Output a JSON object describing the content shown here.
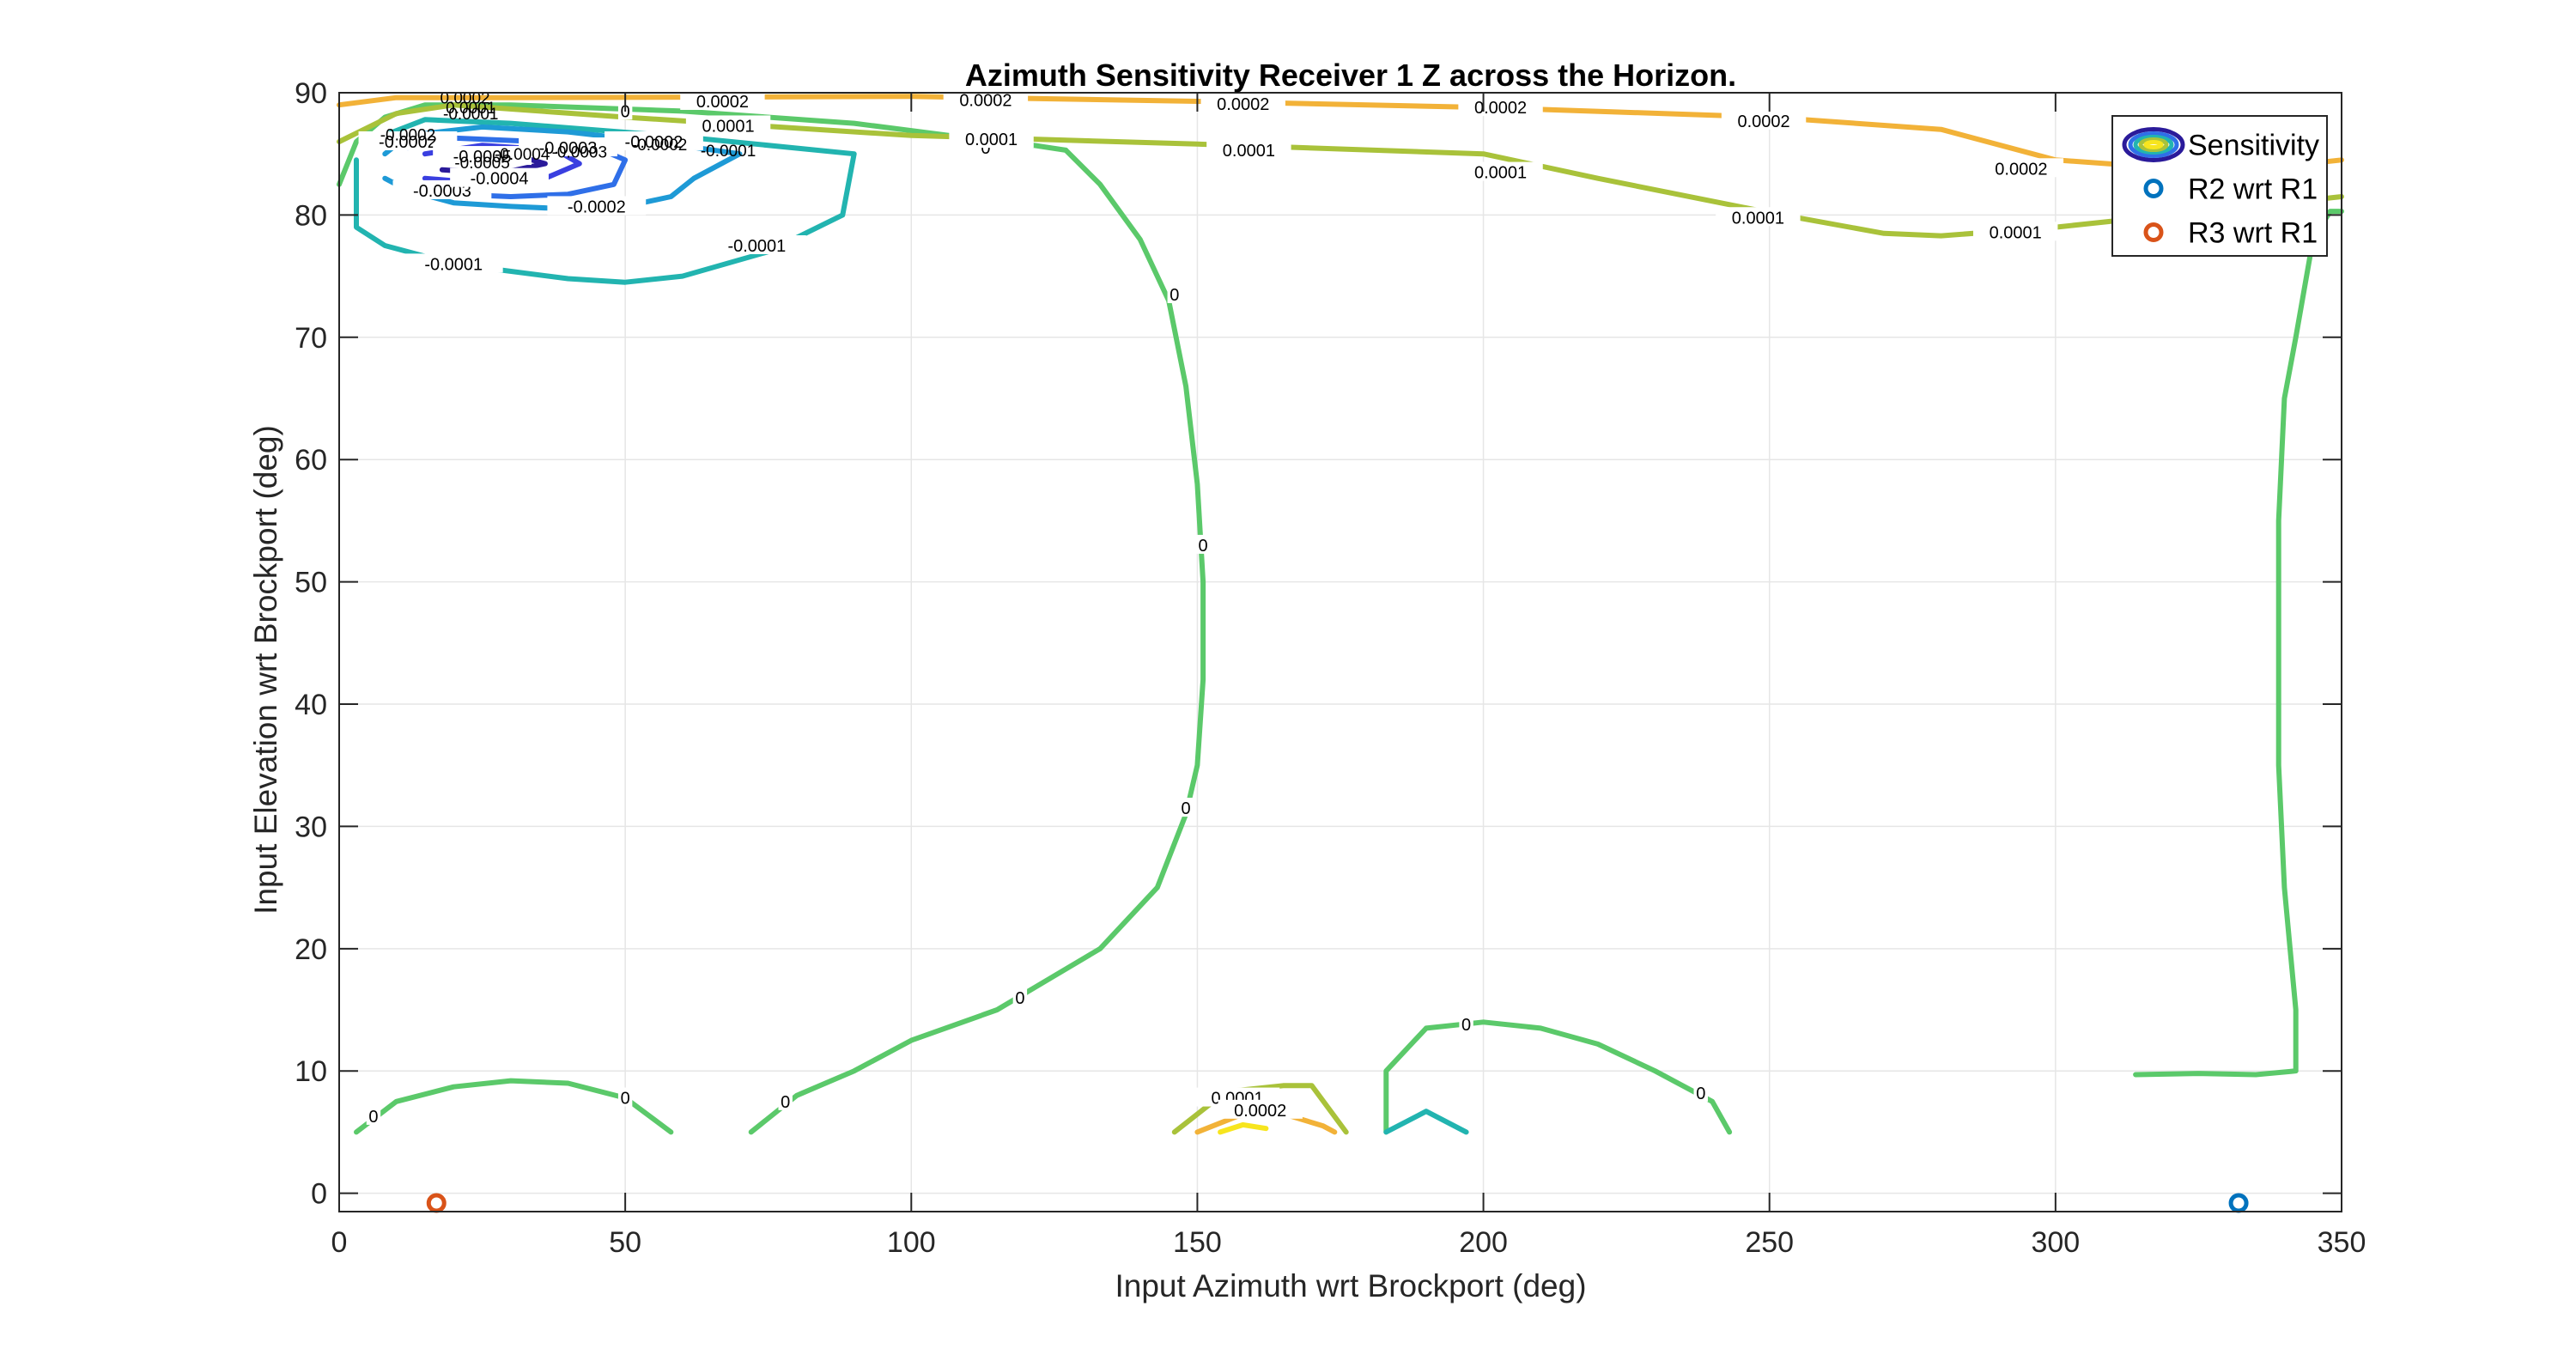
{
  "chart_data": {
    "type": "contour",
    "title": "Azimuth Sensitivity Receiver 1 Z across the Horizon.",
    "xlabel": "Input Azimuth wrt Brockport (deg)",
    "ylabel": "Input Elevation wrt Brockport (deg)",
    "xlim": [
      0,
      350
    ],
    "ylim": [
      -1.5,
      90
    ],
    "xticks": [
      "0",
      "50",
      "100",
      "150",
      "200",
      "250",
      "300",
      "350"
    ],
    "yticks": [
      "0",
      "10",
      "20",
      "30",
      "40",
      "50",
      "60",
      "70",
      "80",
      "90"
    ],
    "grid": true,
    "legend": {
      "placement": "top-right",
      "entries": [
        {
          "label": "Sensitivity",
          "type": "contour"
        },
        {
          "label": "R2 wrt R1",
          "color": "#0072BD"
        },
        {
          "label": "R3 wrt R1",
          "color": "#D95319"
        }
      ]
    },
    "colors": {
      "neg5": "#2a1a9a",
      "neg4": "#3a3fe0",
      "neg3": "#2f6fe8",
      "neg2": "#1e9ad6",
      "neg1": "#22b4b0",
      "zero": "#5bc96a",
      "pos1": "#a9c23a",
      "pos2": "#f2b238",
      "pos3": "#f7e51e"
    },
    "contours": [
      {
        "level": "zero",
        "label": "0",
        "points": [
          [
            0,
            82.5
          ],
          [
            3,
            86
          ],
          [
            8,
            88
          ],
          [
            15,
            89
          ],
          [
            30,
            89
          ],
          [
            60,
            88.5
          ],
          [
            90,
            87.5
          ],
          [
            110,
            86.3
          ],
          [
            120,
            85.8
          ],
          [
            127,
            85.3
          ]
        ],
        "labels": [
          [
            50,
            88.5
          ],
          [
            113,
            85.5
          ]
        ]
      },
      {
        "level": "zero",
        "label": "0",
        "points": [
          [
            127,
            85.3
          ],
          [
            133,
            82.5
          ],
          [
            140,
            78
          ],
          [
            145,
            73
          ],
          [
            148,
            66
          ],
          [
            150,
            58
          ],
          [
            151,
            50
          ],
          [
            151,
            42
          ],
          [
            150,
            35
          ],
          [
            148,
            31
          ],
          [
            143,
            25
          ],
          [
            133,
            20
          ],
          [
            115,
            15
          ],
          [
            100,
            12.5
          ],
          [
            90,
            10
          ],
          [
            80,
            8
          ],
          [
            72,
            5
          ]
        ],
        "labels": [
          [
            146,
            73.5
          ],
          [
            151,
            53
          ],
          [
            148,
            31.5
          ],
          [
            119,
            16
          ],
          [
            78,
            7.5
          ]
        ]
      },
      {
        "level": "zero",
        "label": "0",
        "points": [
          [
            3,
            5
          ],
          [
            10,
            7.5
          ],
          [
            20,
            8.7
          ],
          [
            30,
            9.2
          ],
          [
            40,
            9
          ],
          [
            50,
            7.8
          ],
          [
            58,
            5
          ]
        ],
        "labels": [
          [
            6,
            6.3
          ],
          [
            50,
            7.8
          ]
        ]
      },
      {
        "level": "zero",
        "label": "0",
        "points": [
          [
            183,
            5
          ],
          [
            183,
            10
          ],
          [
            190,
            13.5
          ],
          [
            200,
            14
          ],
          [
            210,
            13.5
          ],
          [
            220,
            12.2
          ],
          [
            230,
            10
          ],
          [
            240,
            7.5
          ],
          [
            243,
            5
          ]
        ],
        "labels": [
          [
            197,
            13.8
          ],
          [
            238,
            8.2
          ]
        ]
      },
      {
        "level": "zero",
        "label": "",
        "points": [
          [
            314,
            9.7
          ],
          [
            325,
            9.8
          ],
          [
            335,
            9.7
          ],
          [
            342,
            10
          ],
          [
            342,
            15
          ],
          [
            341,
            20
          ],
          [
            340,
            25
          ],
          [
            339,
            35
          ],
          [
            339,
            45
          ],
          [
            339,
            55
          ],
          [
            340,
            65
          ],
          [
            342,
            70
          ],
          [
            345,
            78
          ],
          [
            348,
            80.3
          ],
          [
            350,
            80.3
          ]
        ],
        "labels": [
          [
            342,
            13
          ],
          [
            339,
            34
          ],
          [
            339,
            56
          ],
          [
            343,
            77
          ]
        ]
      },
      {
        "level": "neg1",
        "label": "-0.0001",
        "points": [
          [
            3,
            84.5
          ],
          [
            3,
            79
          ],
          [
            8,
            77.5
          ],
          [
            20,
            76
          ],
          [
            40,
            74.8
          ],
          [
            50,
            74.5
          ],
          [
            60,
            75
          ],
          [
            75,
            77
          ],
          [
            88,
            80
          ],
          [
            90,
            85
          ],
          [
            60,
            86.4
          ],
          [
            30,
            87.5
          ],
          [
            15,
            87.8
          ],
          [
            5,
            86
          ]
        ],
        "labels": [
          [
            20,
            76
          ],
          [
            73,
            77.5
          ]
        ]
      },
      {
        "level": "neg1",
        "label": "",
        "points": [
          [
            183,
            5
          ],
          [
            190,
            6.7
          ],
          [
            197,
            5
          ]
        ],
        "labels": []
      },
      {
        "level": "neg2",
        "label": "-0.0002",
        "points": [
          [
            8,
            83
          ],
          [
            12,
            82
          ],
          [
            20,
            81
          ],
          [
            30,
            80.7
          ],
          [
            40,
            80.5
          ],
          [
            50,
            80.7
          ],
          [
            58,
            81.5
          ],
          [
            62,
            83
          ],
          [
            70,
            85
          ],
          [
            55,
            86
          ],
          [
            40,
            86.8
          ],
          [
            25,
            87.2
          ],
          [
            12,
            86.5
          ],
          [
            8,
            85
          ]
        ],
        "labels": [
          [
            45,
            80.7
          ],
          [
            55,
            86
          ],
          [
            12,
            86
          ]
        ]
      },
      {
        "level": "neg3",
        "label": "-0.0003",
        "points": [
          [
            13,
            82.5
          ],
          [
            20,
            81.7
          ],
          [
            30,
            81.5
          ],
          [
            40,
            81.7
          ],
          [
            48,
            82.5
          ],
          [
            50,
            84.5
          ],
          [
            45,
            85.5
          ],
          [
            35,
            86
          ],
          [
            20,
            86.3
          ],
          [
            12,
            85.5
          ]
        ],
        "labels": [
          [
            18,
            82
          ],
          [
            40,
            85.5
          ]
        ]
      },
      {
        "level": "neg4",
        "label": "-0.0004",
        "points": [
          [
            15,
            83
          ],
          [
            25,
            82.6
          ],
          [
            35,
            82.8
          ],
          [
            42,
            84.2
          ],
          [
            38,
            85.3
          ],
          [
            25,
            85.7
          ],
          [
            15,
            85
          ]
        ],
        "labels": [
          [
            28,
            83
          ]
        ]
      },
      {
        "level": "neg5",
        "label": "-0.0005",
        "points": [
          [
            18,
            83.7
          ],
          [
            28,
            83.4
          ],
          [
            36,
            84.2
          ],
          [
            30,
            85
          ],
          [
            20,
            85
          ],
          [
            17,
            84.5
          ]
        ],
        "labels": [
          [
            25,
            84.8
          ]
        ]
      },
      {
        "level": "pos1",
        "label": "0.0001",
        "points": [
          [
            0,
            86
          ],
          [
            10,
            88.3
          ],
          [
            20,
            89
          ],
          [
            50,
            88
          ],
          [
            100,
            86.5
          ],
          [
            150,
            85.8
          ],
          [
            200,
            85
          ],
          [
            220,
            83
          ],
          [
            250,
            80.2
          ],
          [
            270,
            78.5
          ],
          [
            280,
            78.3
          ],
          [
            300,
            79
          ],
          [
            320,
            80
          ],
          [
            340,
            81
          ],
          [
            350,
            81.5
          ]
        ],
        "labels": [
          [
            68,
            87.3
          ],
          [
            114,
            86.2
          ],
          [
            159,
            85.3
          ],
          [
            203,
            83.5
          ],
          [
            248,
            79.8
          ],
          [
            293,
            78.6
          ]
        ]
      },
      {
        "level": "pos1",
        "label": "0.0001",
        "points": [
          [
            146,
            5
          ],
          [
            155,
            8.3
          ],
          [
            165,
            8.8
          ],
          [
            170,
            8.8
          ],
          [
            176,
            5
          ]
        ],
        "labels": [
          [
            157,
            7.8
          ]
        ]
      },
      {
        "level": "pos2",
        "label": "0.0002",
        "points": [
          [
            0,
            89
          ],
          [
            10,
            89.6
          ],
          [
            30,
            89.6
          ],
          [
            100,
            89.7
          ],
          [
            150,
            89.3
          ],
          [
            200,
            88.8
          ],
          [
            250,
            88
          ],
          [
            280,
            87
          ],
          [
            300,
            84.5
          ],
          [
            330,
            83.5
          ],
          [
            350,
            84.5
          ]
        ],
        "labels": [
          [
            67,
            89.3
          ],
          [
            113,
            89.4
          ],
          [
            158,
            89.1
          ],
          [
            203,
            88.8
          ],
          [
            249,
            87.7
          ],
          [
            294,
            83.8
          ]
        ]
      },
      {
        "level": "pos2",
        "label": "0.0002",
        "points": [
          [
            150,
            5
          ],
          [
            157,
            6.3
          ],
          [
            165,
            6.5
          ],
          [
            172,
            5.5
          ],
          [
            174,
            5
          ]
        ],
        "labels": [
          [
            161,
            6.8
          ]
        ]
      },
      {
        "level": "pos3",
        "label": "",
        "points": [
          [
            154,
            5
          ],
          [
            158,
            5.6
          ],
          [
            162,
            5.3
          ]
        ],
        "labels": []
      }
    ],
    "overlay_labels": [
      {
        "text": "0.0002",
        "x": 22,
        "y": 89.6
      },
      {
        "text": "0.0001",
        "x": 23,
        "y": 88.8
      },
      {
        "text": "-0.0001",
        "x": 23,
        "y": 88.3
      },
      {
        "text": "-0.0002",
        "x": 12,
        "y": 86.6
      },
      {
        "text": "-0.0003",
        "x": 42,
        "y": 85.2
      },
      {
        "text": "-0.0004",
        "x": 32,
        "y": 85.0
      },
      {
        "text": "-0.0005",
        "x": 25,
        "y": 84.3
      },
      {
        "text": "-0.0001",
        "x": 68,
        "y": 85.3
      },
      {
        "text": "-0.0002",
        "x": 56,
        "y": 85.8
      }
    ],
    "points": [
      {
        "name": "R2 wrt R1",
        "x": 332,
        "y": -0.8
      },
      {
        "name": "R3 wrt R1",
        "x": 17,
        "y": -0.8
      }
    ]
  }
}
